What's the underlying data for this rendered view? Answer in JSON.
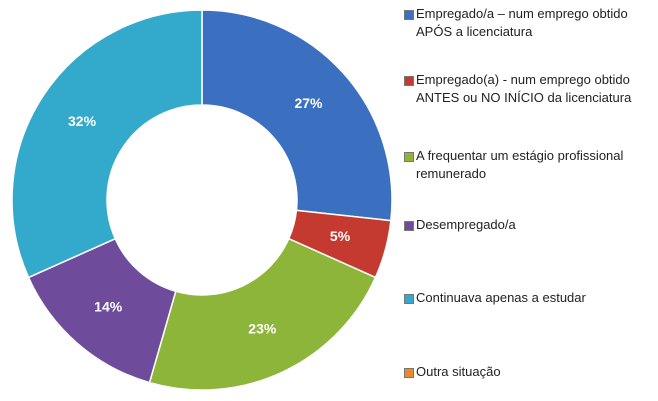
{
  "chart_data": {
    "type": "donut",
    "categories": [
      "Empregado/a – num emprego obtido APÓS a licenciatura",
      "Empregado(a) - num emprego obtido ANTES ou NO INÍCIO da licenciatura",
      "A frequentar um estágio profissional remunerado",
      "Desempregado/a",
      "Continuava apenas a estudar",
      "Outra situação"
    ],
    "values": [
      27,
      5,
      23,
      14,
      32,
      0
    ],
    "value_labels": [
      "27%",
      "5%",
      "23%",
      "14%",
      "32%",
      null
    ],
    "colors": [
      "#3b6fbf",
      "#c43a30",
      "#8cb53a",
      "#6f4c9b",
      "#33a9cb",
      "#ea8a2c"
    ],
    "legend": "right"
  }
}
